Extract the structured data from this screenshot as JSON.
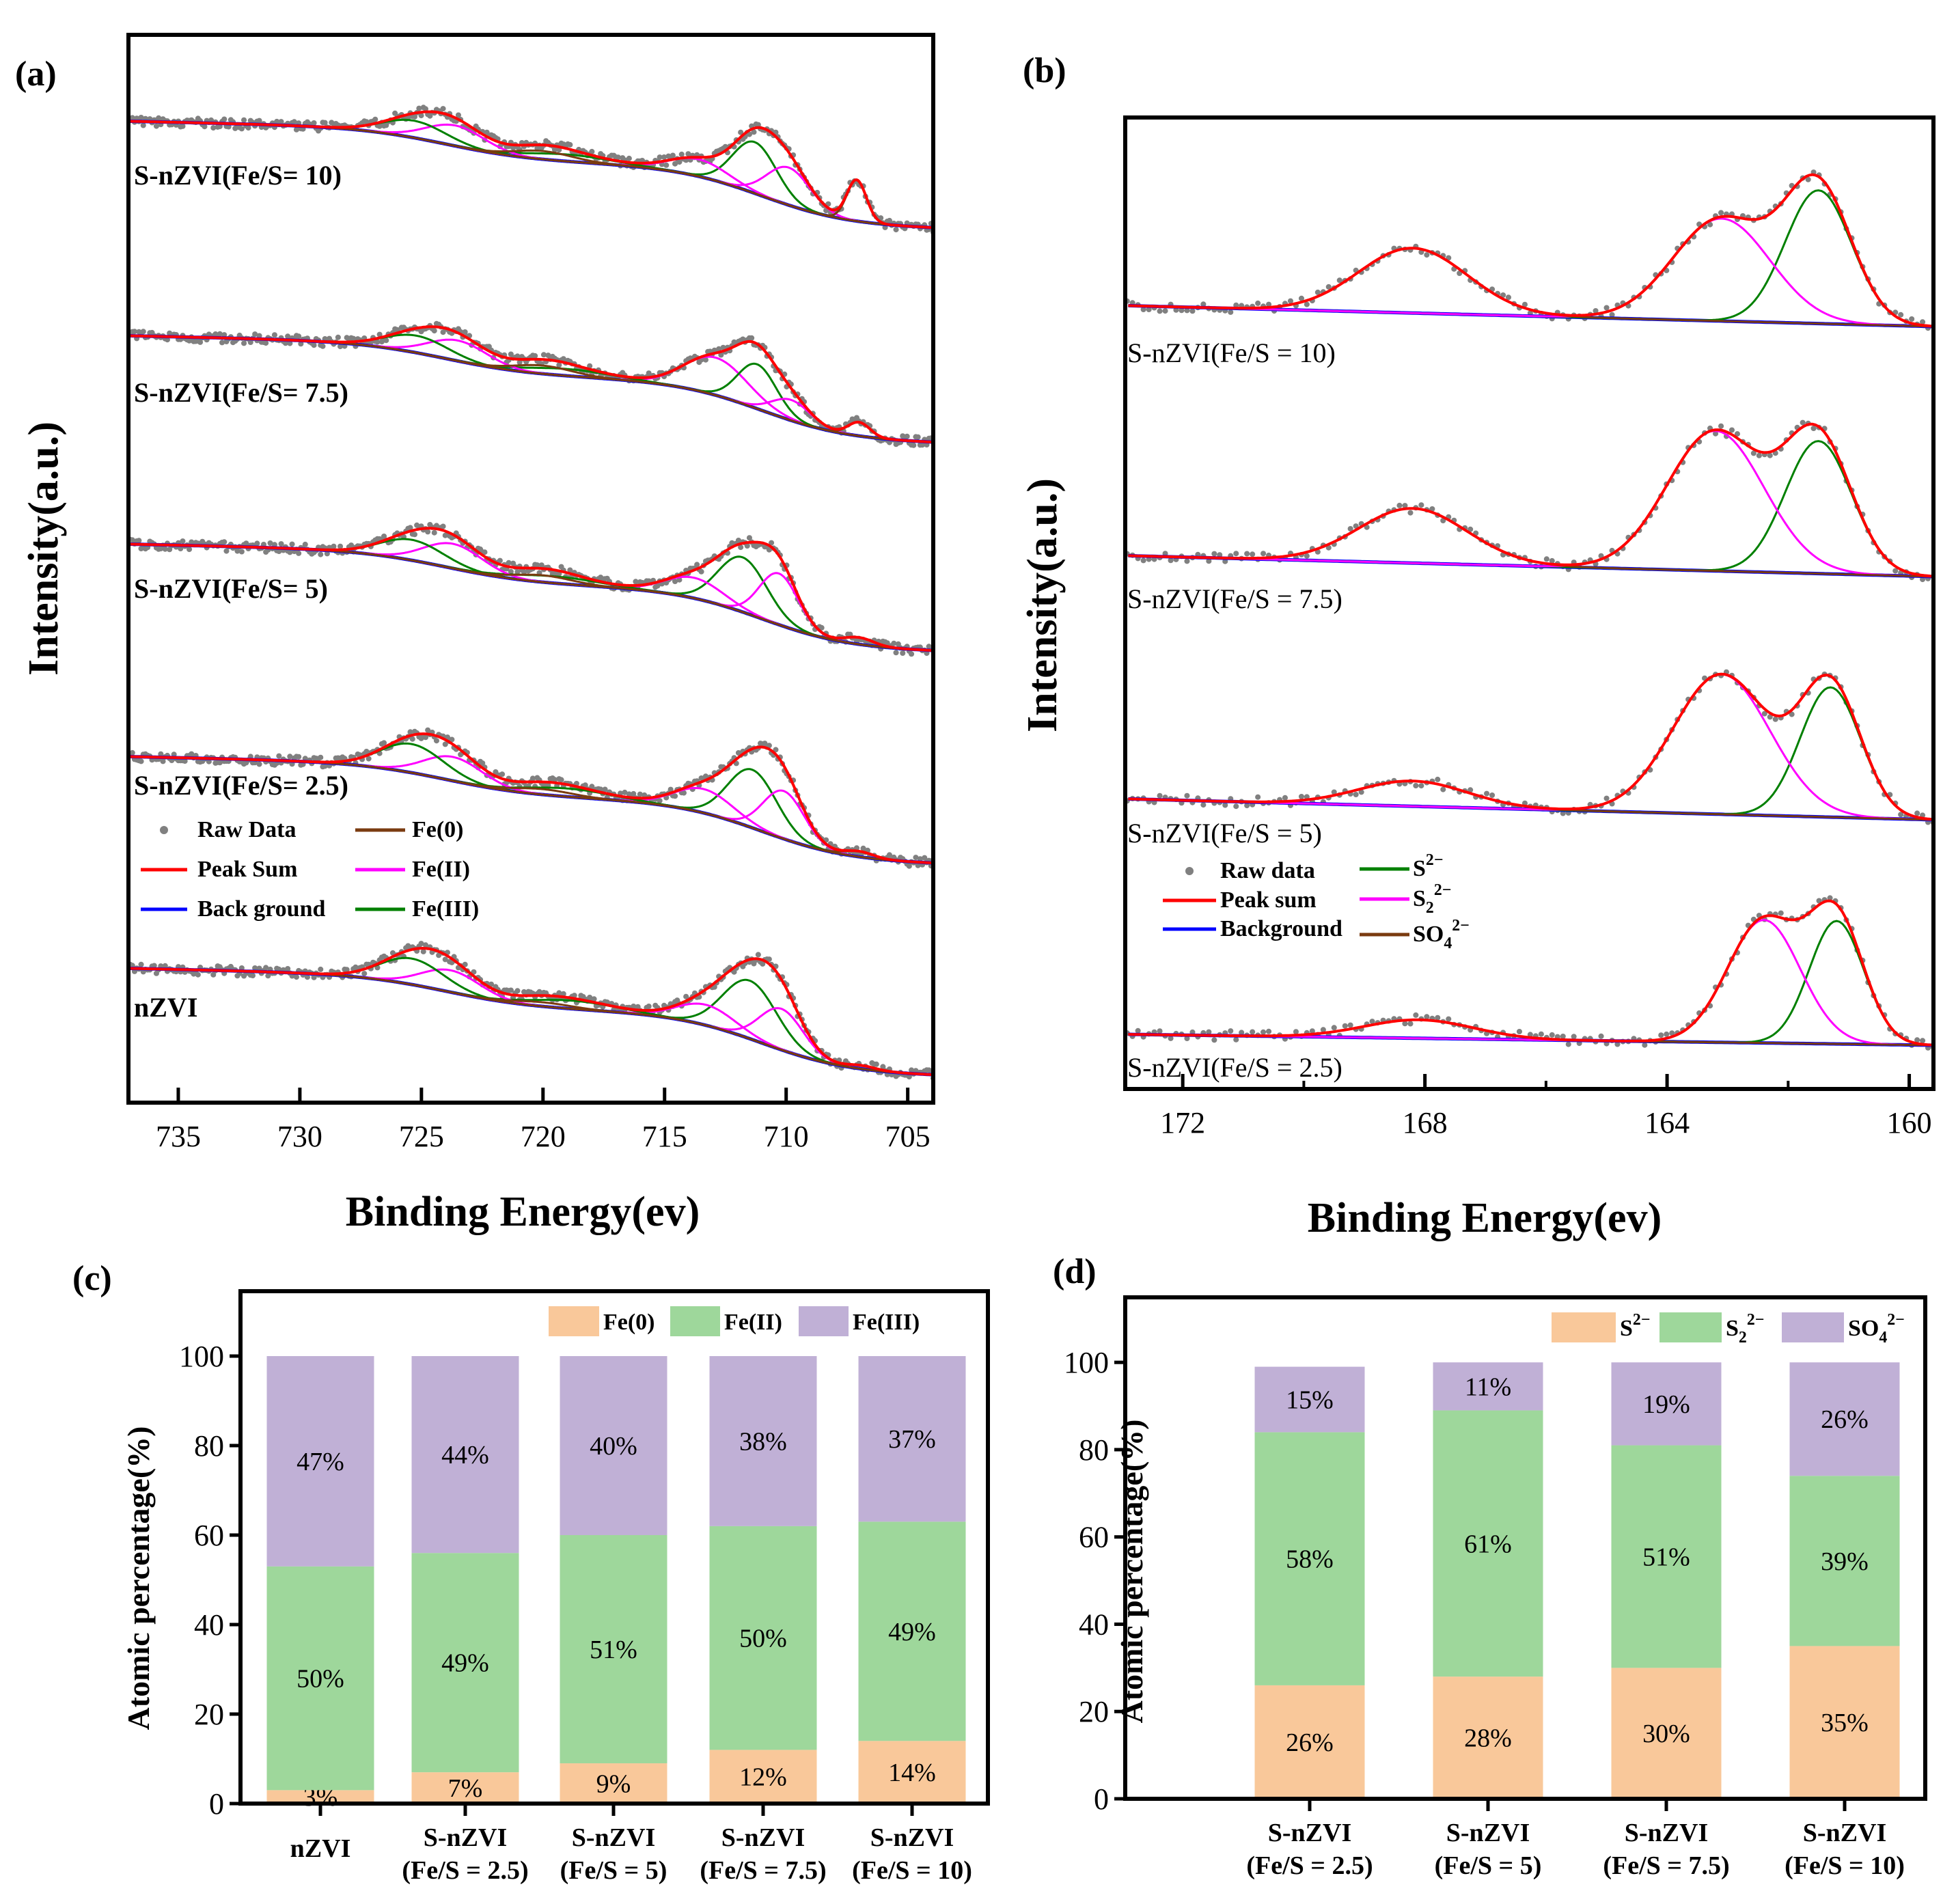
{
  "colors": {
    "raw": "#808080",
    "sum": "#ff0000",
    "bg": "#0000ff",
    "fe0": "#7a3b10",
    "fe2": "#ff00ff",
    "fe3": "#008000",
    "bar_fe0": "#f9c89a",
    "bar_fe2": "#9ed79b",
    "bar_fe3": "#c0b0d6"
  },
  "chart_data": [
    {
      "panel": "(a)",
      "type": "line",
      "xlabel": "Binding Energy(ev)",
      "ylabel": "Intensity(a.u.)",
      "xlim": [
        737.05,
        703.95
      ],
      "ylim": [
        -0.4,
        15.23
      ],
      "xticks": [
        735,
        730,
        725,
        720,
        715,
        710,
        705
      ],
      "legend": {
        "raw": "Raw Data",
        "sum": "Peak Sum",
        "bg": "Back ground",
        "c1": "Fe(0)",
        "c2": "Fe(II)",
        "c3": "Fe(III)"
      },
      "spectra": [
        {
          "label": "S-nZVI(Fe/S= 10)",
          "offset": 12.4,
          "bg_step": 1.55,
          "peaks": [
            [
              "c3",
              711.3,
              0.75,
              0.9
            ],
            [
              "c2",
              709.9,
              0.55,
              0.9
            ],
            [
              "c2",
              713.6,
              0.25,
              1.2
            ],
            [
              "c3",
              719,
              0.1,
              1.8
            ],
            [
              "c2",
              723.6,
              0.3,
              1.2
            ],
            [
              "c3",
              725.3,
              0.25,
              1.3
            ],
            [
              "c1",
              707.1,
              0.6,
              0.4
            ],
            [
              "c1",
              720,
              0.12,
              1.2
            ]
          ]
        },
        {
          "label": "S-nZVI(Fe/S= 7.5)",
          "offset": 9.26,
          "bg_step": 1.55,
          "peaks": [
            [
              "c2",
              712.9,
              0.55,
              1.3
            ],
            [
              "c3",
              711.2,
              0.65,
              0.8
            ],
            [
              "c2",
              709.8,
              0.3,
              0.8
            ],
            [
              "c3",
              719,
              0.1,
              1.8
            ],
            [
              "c2",
              723.5,
              0.3,
              1.2
            ],
            [
              "c3",
              725.2,
              0.25,
              1.3
            ],
            [
              "c1",
              707,
              0.2,
              0.45
            ],
            [
              "c1",
              720,
              0.12,
              1.2
            ]
          ]
        },
        {
          "label": "S-nZVI(Fe/S= 5)",
          "offset": 6.21,
          "bg_step": 1.55,
          "peaks": [
            [
              "c3",
              711.8,
              0.8,
              1.0
            ],
            [
              "c2",
              710.3,
              0.75,
              0.8
            ],
            [
              "c2",
              713.8,
              0.3,
              1.2
            ],
            [
              "c3",
              719.5,
              0.1,
              1.8
            ],
            [
              "c2",
              723.7,
              0.36,
              1.2
            ],
            [
              "c3",
              725.4,
              0.3,
              1.3
            ],
            [
              "c1",
              707,
              0.1,
              0.6
            ],
            [
              "c1",
              720,
              0.1,
              1.2
            ]
          ]
        },
        {
          "label": "S-nZVI(Fe/S= 2.5)",
          "offset": 3.1,
          "bg_step": 1.55,
          "peaks": [
            [
              "c3",
              711.4,
              0.85,
              1.0
            ],
            [
              "c2",
              710.1,
              0.7,
              0.85
            ],
            [
              "c2",
              713.4,
              0.35,
              1.2
            ],
            [
              "c3",
              719,
              0.12,
              1.8
            ],
            [
              "c2",
              723.7,
              0.35,
              1.2
            ],
            [
              "c3",
              725.4,
              0.42,
              1.3
            ],
            [
              "c1",
              707,
              0.08,
              0.6
            ],
            [
              "c1",
              720,
              0.08,
              1.2
            ]
          ]
        },
        {
          "label": "nZVI",
          "offset": 0,
          "bg_step": 1.55,
          "peaks": [
            [
              "c3",
              711.5,
              0.85,
              1.1
            ],
            [
              "c2",
              710.2,
              0.6,
              0.9
            ],
            [
              "c2",
              713.3,
              0.3,
              1.2
            ],
            [
              "c3",
              718.8,
              0.12,
              1.8
            ],
            [
              "c2",
              723.8,
              0.32,
              1.2
            ],
            [
              "c3",
              725.4,
              0.38,
              1.3
            ],
            [
              "c1",
              706.9,
              0.05,
              0.6
            ],
            [
              "c1",
              720,
              0.06,
              1.2
            ]
          ]
        }
      ]
    },
    {
      "panel": "(b)",
      "type": "line",
      "xlabel": "Binding Energy(ev)",
      "ylabel": "Intensity(a.u.)",
      "xlim": [
        172.95,
        159.6
      ],
      "ylim": [
        -0.64,
        13.58
      ],
      "xticks": [
        172,
        168,
        164,
        160
      ],
      "minor_xticks": [
        170,
        166,
        162
      ],
      "legend": {
        "raw": "Raw data",
        "sum": "Peak sum",
        "bg": "Background",
        "c1": {
          "base": "S",
          "sub": "",
          "sup": "2−"
        },
        "c2": {
          "base": "S",
          "sub": "2",
          "sup": "2−"
        },
        "c3": {
          "base": "SO",
          "sub": "4",
          "sup": "2−"
        }
      },
      "spectra": [
        {
          "label": "S-nZVI(Fe/S = 10)",
          "offset": 10.52,
          "bg_slope": 0.023,
          "peaks": [
            [
              "c1",
              161.5,
              1.95,
              0.55
            ],
            [
              "c2",
              163.1,
              1.5,
              0.8
            ],
            [
              "c3",
              168.2,
              0.95,
              0.9
            ]
          ]
        },
        {
          "label": "S-nZVI(Fe/S = 7.5)",
          "offset": 6.86,
          "bg_slope": 0.023,
          "peaks": [
            [
              "c1",
              161.5,
              1.94,
              0.55
            ],
            [
              "c2",
              163.2,
              2.05,
              0.8
            ],
            [
              "c3",
              168.2,
              0.8,
              0.9
            ]
          ]
        },
        {
          "label": "S-nZVI(Fe/S = 5)",
          "offset": 3.3,
          "bg_slope": 0.023,
          "peaks": [
            [
              "c1",
              161.3,
              1.9,
              0.5
            ],
            [
              "c2",
              163.1,
              2.05,
              0.8
            ],
            [
              "c3",
              168.2,
              0.37,
              0.9
            ]
          ]
        },
        {
          "label": "S-nZVI(Fe/S = 2.5)",
          "offset": 0,
          "bg_slope": 0.012,
          "peaks": [
            [
              "c1",
              161.2,
              1.8,
              0.45
            ],
            [
              "c2",
              162.4,
              1.8,
              0.6
            ],
            [
              "c3",
              168.1,
              0.27,
              0.9
            ]
          ]
        }
      ]
    },
    {
      "panel": "(c)",
      "type": "bar",
      "stacked": true,
      "ylabel": "Atomic percentage(%)",
      "ylim": [
        0,
        114.5
      ],
      "yticks": [
        0,
        20,
        40,
        60,
        80,
        100
      ],
      "categories": [
        [
          "nZVI"
        ],
        [
          "S-nZVI",
          "(Fe/S = 2.5)"
        ],
        [
          "S-nZVI",
          "(Fe/S = 5)"
        ],
        [
          "S-nZVI",
          "(Fe/S = 7.5)"
        ],
        [
          "S-nZVI",
          "(Fe/S = 10)"
        ]
      ],
      "series": [
        {
          "name": "Fe(0)",
          "key": "bar_fe0",
          "values": [
            3,
            7,
            9,
            12,
            14
          ],
          "labels": [
            "3%",
            "7%",
            "9%",
            "12%",
            "14%"
          ]
        },
        {
          "name": "Fe(II)",
          "key": "bar_fe2",
          "values": [
            50,
            49,
            51,
            50,
            49
          ],
          "labels": [
            "50%",
            "49%",
            "51%",
            "50%",
            "49%"
          ]
        },
        {
          "name": "Fe(III)",
          "key": "bar_fe3",
          "values": [
            47,
            44,
            40,
            38,
            37
          ],
          "labels": [
            "47%",
            "44%",
            "40%",
            "38%",
            "37%"
          ]
        }
      ],
      "legend_parts": [
        {
          "base": "Fe(0)"
        },
        {
          "base": "Fe(II)"
        },
        {
          "base": "Fe(III)"
        }
      ]
    },
    {
      "panel": "(d)",
      "type": "bar",
      "stacked": true,
      "ylabel": "Atomic percentage(%)",
      "ylim": [
        0,
        114.9
      ],
      "yticks": [
        0,
        20,
        40,
        60,
        80,
        100
      ],
      "categories": [
        [
          "S-nZVI",
          "(Fe/S = 2.5)"
        ],
        [
          "S-nZVI",
          "(Fe/S = 5)"
        ],
        [
          "S-nZVI",
          "(Fe/S = 7.5)"
        ],
        [
          "S-nZVI",
          "(Fe/S = 10)"
        ]
      ],
      "series": [
        {
          "name": "S2−",
          "key": "bar_fe0",
          "values": [
            26,
            28,
            30,
            35
          ],
          "labels": [
            "26%",
            "28%",
            "30%",
            "35%"
          ]
        },
        {
          "name": "S22−",
          "key": "bar_fe2",
          "values": [
            58,
            61,
            51,
            39
          ],
          "labels": [
            "58%",
            "61%",
            "51%",
            "39%"
          ]
        },
        {
          "name": "SO42−",
          "key": "bar_fe3",
          "values": [
            15,
            11,
            19,
            26
          ],
          "labels": [
            "15%",
            "11%",
            "19%",
            "26%"
          ]
        }
      ],
      "legend_parts": [
        {
          "base": "S",
          "sub": "",
          "sup": "2−"
        },
        {
          "base": "S",
          "sub": "2",
          "sup": "2−"
        },
        {
          "base": "SO",
          "sub": "4",
          "sup": "2−"
        }
      ]
    }
  ]
}
